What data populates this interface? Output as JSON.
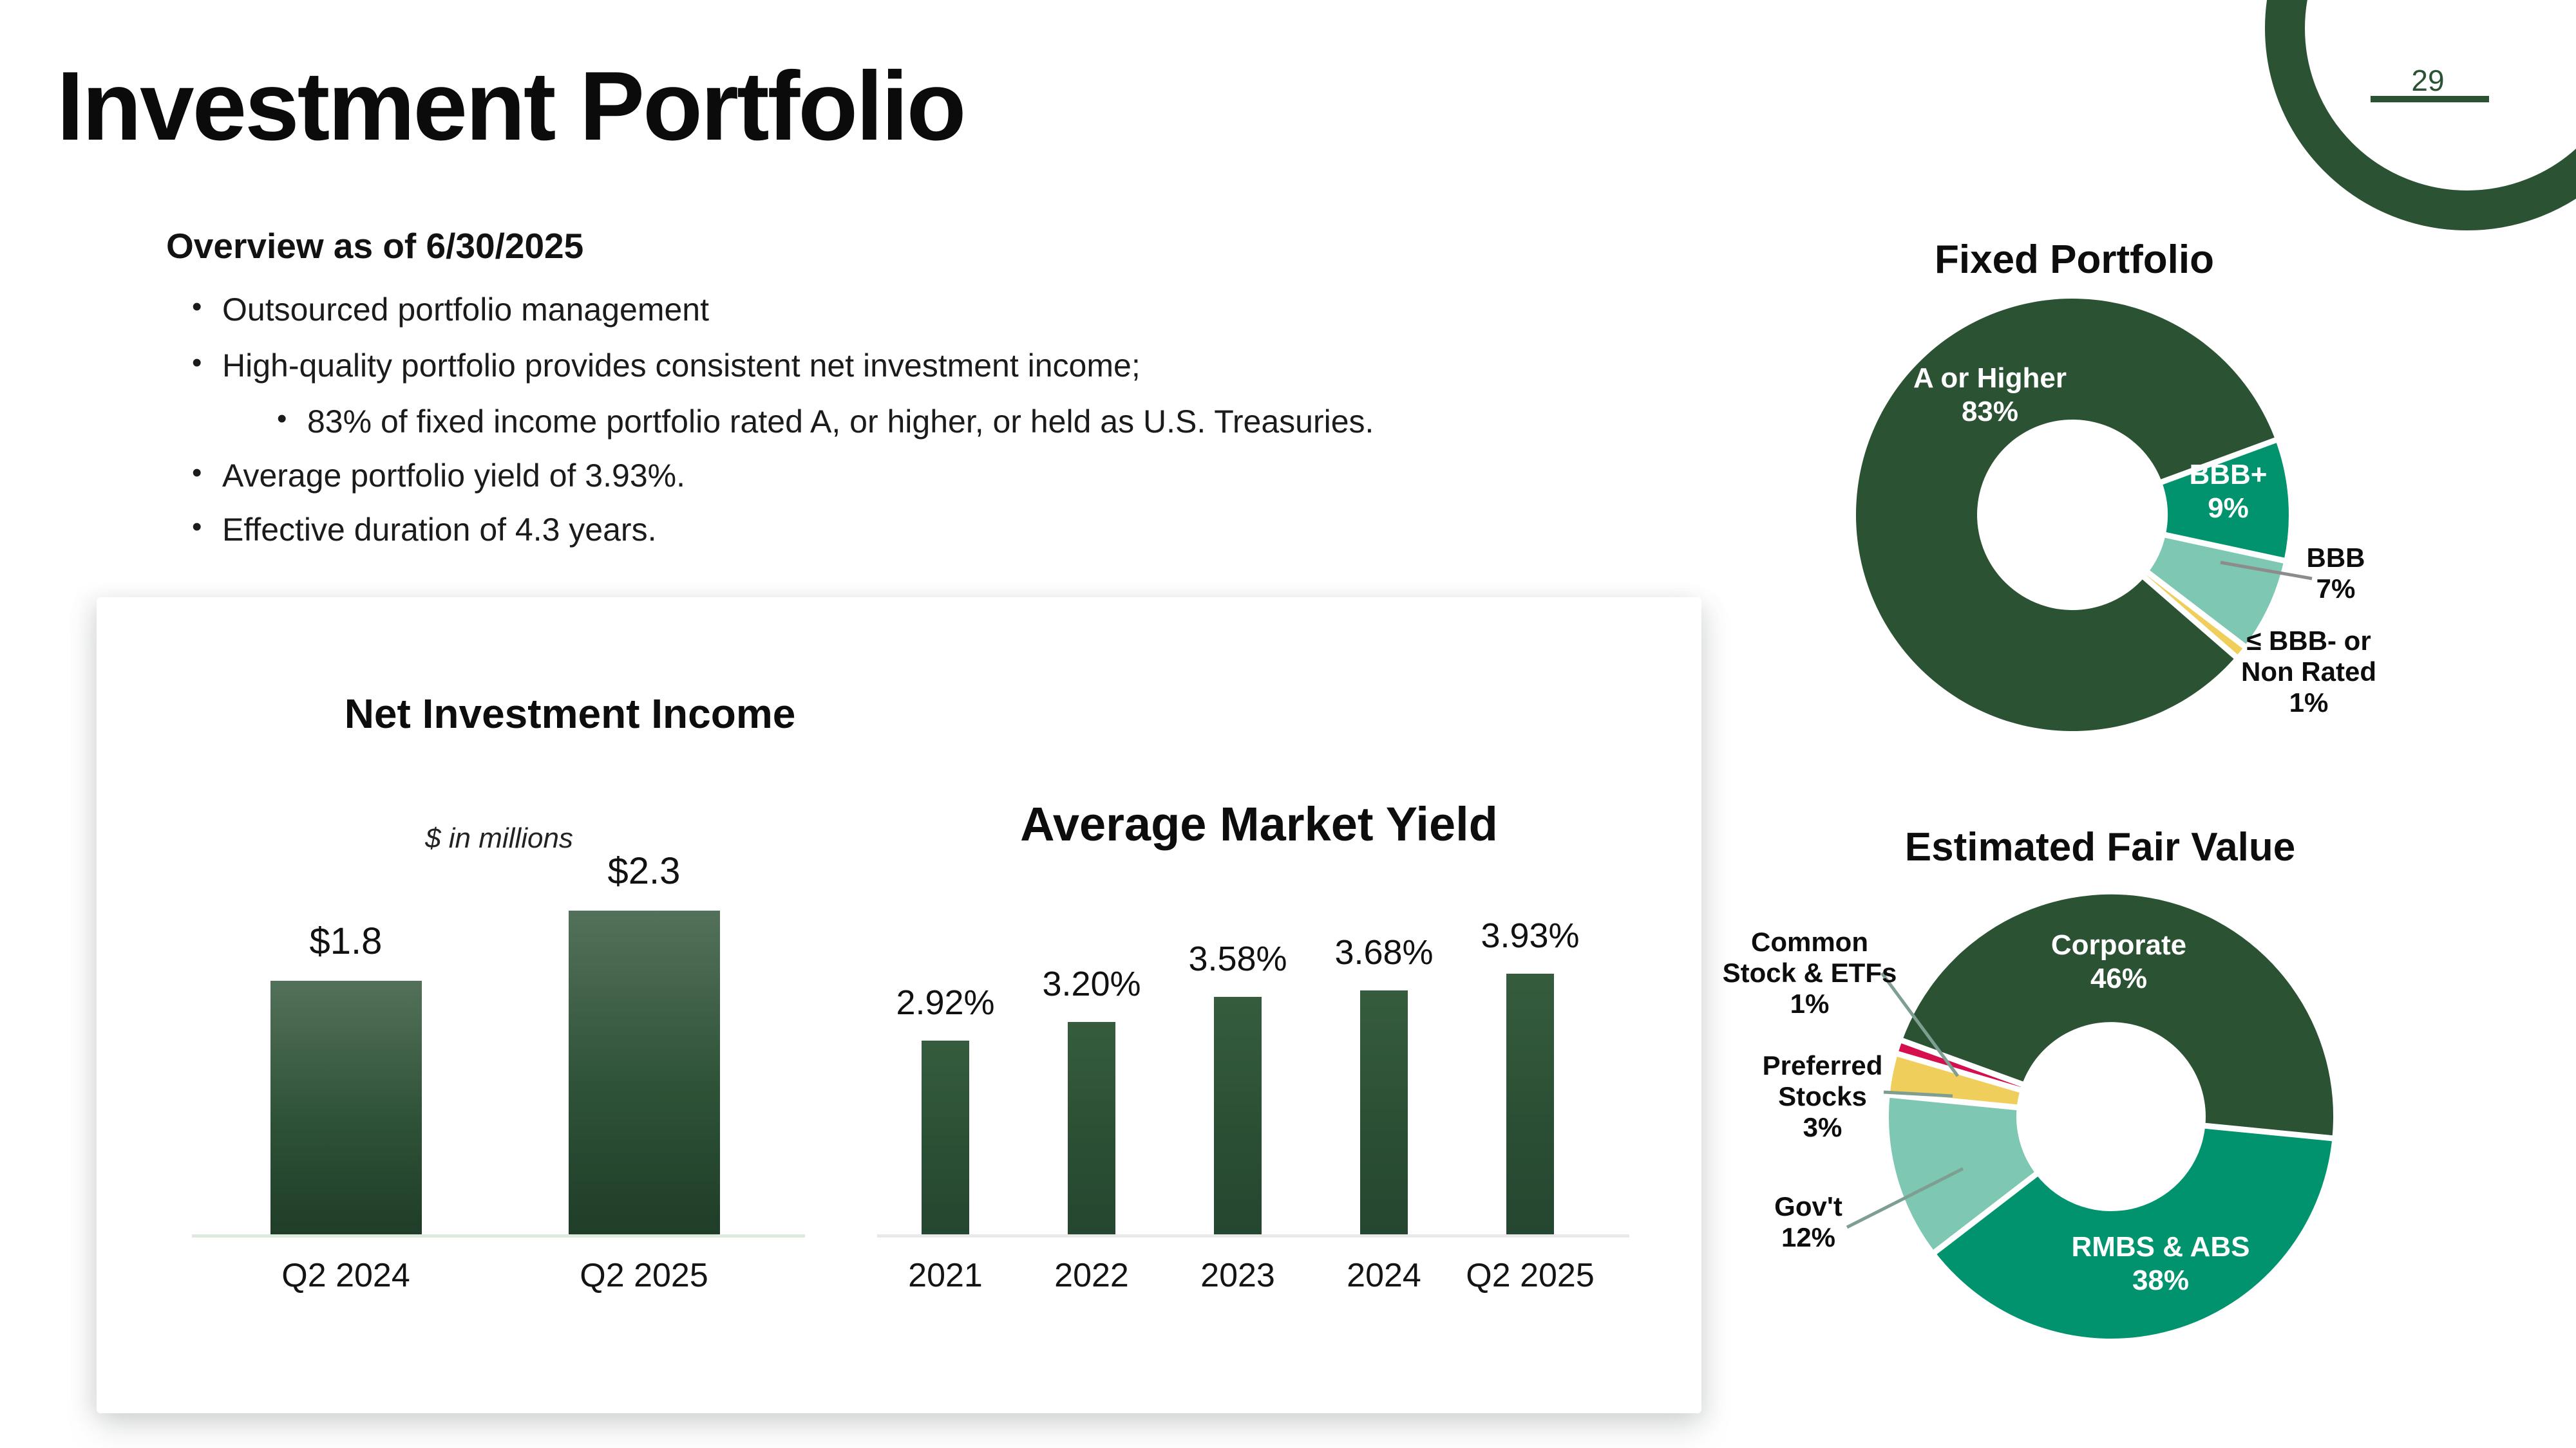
{
  "slide": {
    "title": "Investment Portfolio",
    "page_number": "29"
  },
  "overview": {
    "heading": "Overview as of 6/30/2025",
    "bullets": [
      {
        "level": 1,
        "text": "Outsourced portfolio management"
      },
      {
        "level": 1,
        "text": "High-quality portfolio provides consistent net investment income;"
      },
      {
        "level": 2,
        "text": "83% of fixed income portfolio rated A, or higher, or held as U.S. Treasuries."
      },
      {
        "level": 1,
        "text": "Average portfolio yield of 3.93%."
      },
      {
        "level": 1,
        "text": "Effective duration of 4.3 years."
      }
    ]
  },
  "chart_data": [
    {
      "id": "net-investment-income",
      "type": "bar",
      "title": "Net Investment Income",
      "subtitle": "$ in millions",
      "categories": [
        "Q2 2024",
        "Q2 2025"
      ],
      "values": [
        1.8,
        2.3
      ],
      "value_labels": [
        "$1.8",
        "$2.3"
      ],
      "ylim": [
        0,
        2.3
      ],
      "grid": false,
      "legend": "none",
      "bar_color": "#2C5234",
      "axis_color": "#DDEBDE"
    },
    {
      "id": "average-market-yield",
      "type": "bar",
      "title": "Average Market Yield",
      "subtitle": "",
      "categories": [
        "2021",
        "2022",
        "2023",
        "2024",
        "Q2 2025"
      ],
      "values": [
        2.92,
        3.2,
        3.58,
        3.68,
        3.93
      ],
      "value_labels": [
        "2.92%",
        "3.20%",
        "3.58%",
        "3.68%",
        "3.93%"
      ],
      "ylim": [
        0,
        3.93
      ],
      "grid": false,
      "legend": "none",
      "bar_color": "#2A4E33",
      "axis_color": "#E9E9E9"
    },
    {
      "id": "fixed-portfolio",
      "type": "pie",
      "title": "Fixed Portfolio",
      "donut": true,
      "start_angle_deg": 131,
      "labels": [
        "A or Higher",
        "BBB+",
        "BBB",
        "≤ BBB- or Non Rated"
      ],
      "values": [
        83,
        9,
        7,
        1
      ],
      "colors": [
        "#2C5234",
        "#00936E",
        "#7EC7B2",
        "#F0CE5C"
      ],
      "slice_labels": [
        {
          "lines": [
            "A or Higher",
            "83%"
          ]
        },
        {
          "lines": [
            "BBB+",
            "9%"
          ]
        },
        {
          "lines": [
            "BBB",
            "7%"
          ]
        },
        {
          "lines": [
            "≤ BBB- or",
            "Non Rated",
            "1%"
          ]
        }
      ]
    },
    {
      "id": "estimated-fair-value",
      "type": "pie",
      "title": "Estimated Fair Value",
      "donut": true,
      "start_angle_deg": 290,
      "labels": [
        "Corporate",
        "RMBS & ABS",
        "Gov't",
        "Preferred Stocks",
        "Common Stock & ETFs"
      ],
      "values": [
        46,
        38,
        12,
        3,
        1
      ],
      "colors": [
        "#2C5234",
        "#00936E",
        "#7EC7B2",
        "#F0CE5C",
        "#D50F4E"
      ],
      "slice_labels": [
        {
          "lines": [
            "Corporate",
            "46%"
          ]
        },
        {
          "lines": [
            "RMBS & ABS",
            "38%"
          ]
        },
        {
          "lines": [
            "Gov't",
            "12%"
          ]
        },
        {
          "lines": [
            "Preferred",
            "Stocks",
            "3%"
          ]
        },
        {
          "lines": [
            "Common",
            "Stock & ETFs",
            "1%"
          ]
        }
      ]
    }
  ],
  "colors": {
    "brand_dark_green": "#2C5234",
    "teal": "#00936E",
    "light_teal": "#7EC7B2",
    "yellow": "#F0CE5C",
    "crimson": "#D50F4E",
    "leader_gray": "#8C8C8C",
    "leader_sage": "#7F9E92"
  }
}
